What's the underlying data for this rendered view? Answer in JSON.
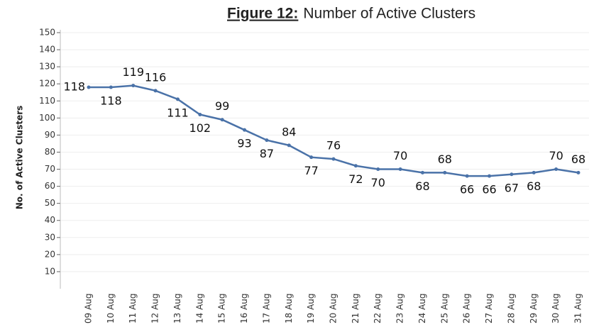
{
  "chart_data": {
    "type": "line",
    "figure_label": "Figure 12:",
    "title": "Number of Active Clusters",
    "y_label": "No. of Active Clusters",
    "categories": [
      "09 Aug",
      "10 Aug",
      "11 Aug",
      "12 Aug",
      "13 Aug",
      "14 Aug",
      "15 Aug",
      "16 Aug",
      "17 Aug",
      "18 Aug",
      "19 Aug",
      "20 Aug",
      "21 Aug",
      "22 Aug",
      "23 Aug",
      "24 Aug",
      "25 Aug",
      "26 Aug",
      "27 Aug",
      "28 Aug",
      "29 Aug",
      "30 Aug",
      "31 Aug"
    ],
    "values": [
      118,
      118,
      119,
      116,
      111,
      102,
      99,
      93,
      87,
      84,
      77,
      76,
      72,
      70,
      70,
      68,
      68,
      66,
      66,
      67,
      68,
      70,
      68
    ],
    "color": "#4a72a8",
    "ylim": [
      0,
      150
    ],
    "yticks": [
      10,
      20,
      30,
      40,
      50,
      60,
      70,
      80,
      90,
      100,
      110,
      120,
      130,
      140,
      150
    ],
    "grid": true
  }
}
